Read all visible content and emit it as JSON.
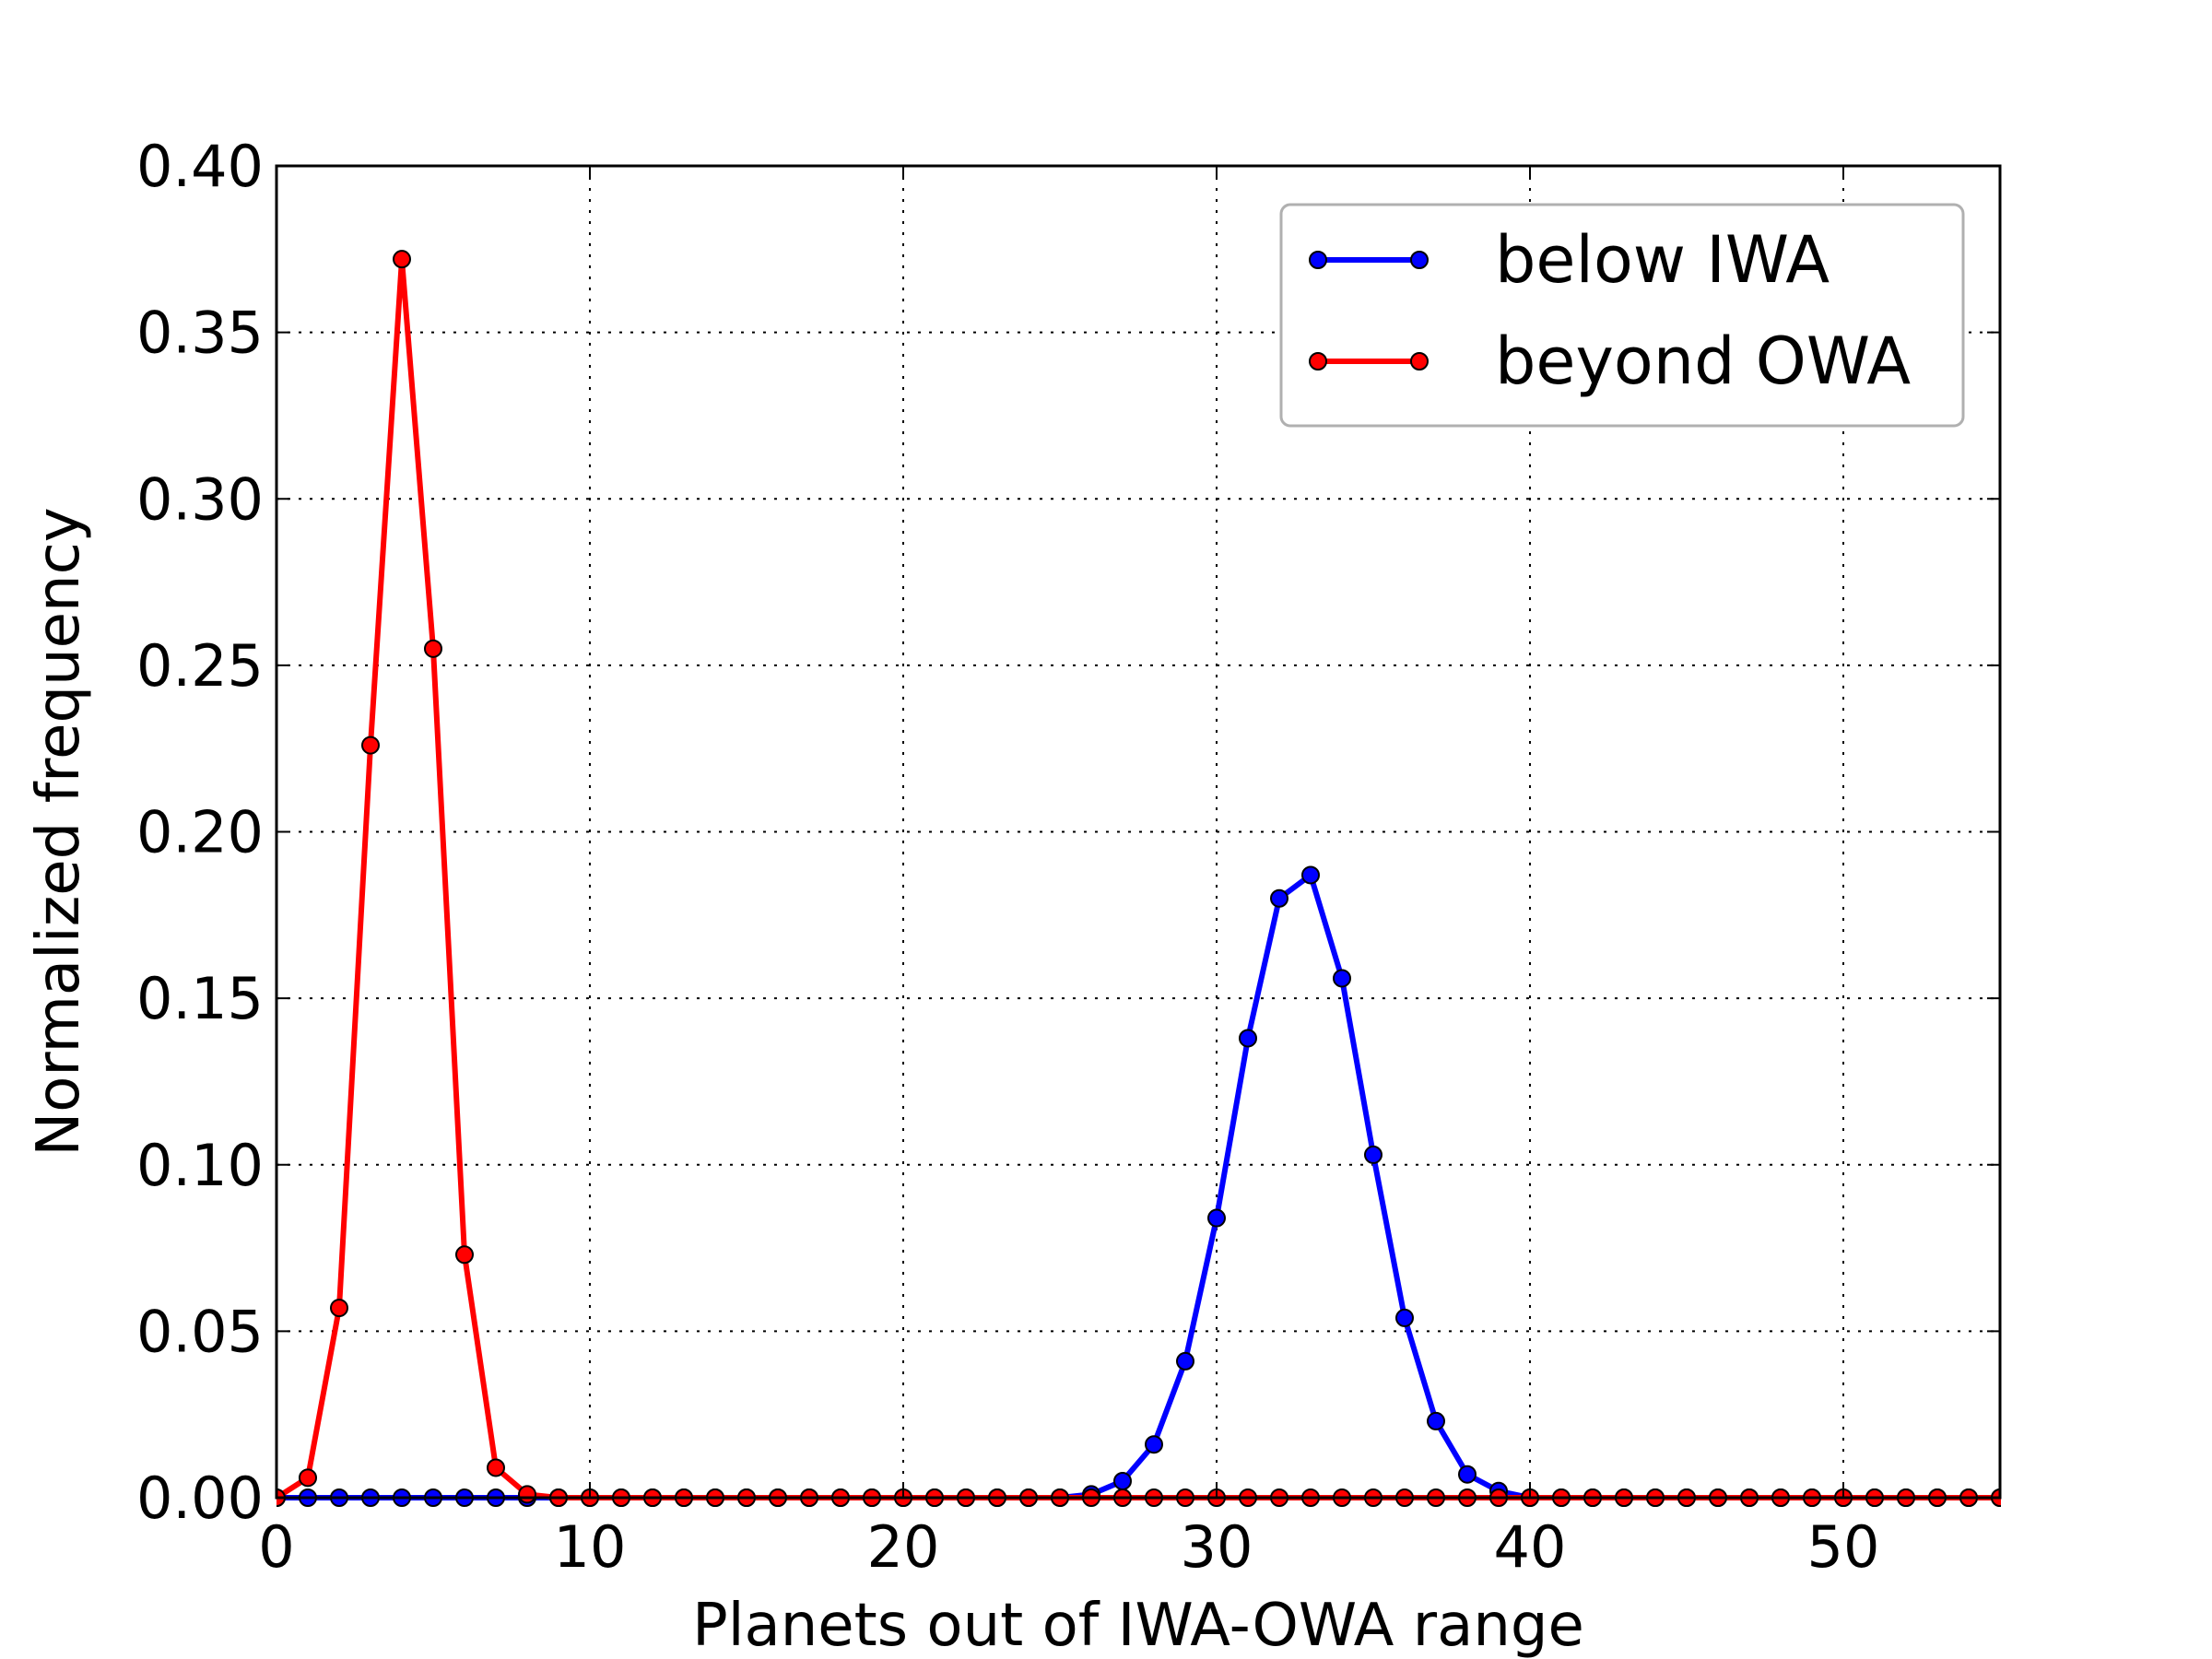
{
  "chart_data": {
    "type": "line",
    "title": "",
    "xlabel": "Planets out of IWA-OWA range",
    "ylabel": "Normalized frequency",
    "xlim": [
      0,
      55
    ],
    "ylim": [
      0,
      0.4
    ],
    "xticks": [
      0,
      10,
      20,
      30,
      40,
      50
    ],
    "xtick_labels": [
      "0",
      "10",
      "20",
      "30",
      "40",
      "50"
    ],
    "yticks": [
      0,
      0.05,
      0.1,
      0.15,
      0.2,
      0.25,
      0.3,
      0.35,
      0.4
    ],
    "ytick_labels": [
      "0.00",
      "0.05",
      "0.10",
      "0.15",
      "0.20",
      "0.25",
      "0.30",
      "0.35",
      "0.40"
    ],
    "grid": true,
    "legend_position": "top-right",
    "series": [
      {
        "name": "below IWA",
        "color": "#0000ff",
        "x": [
          0,
          1,
          2,
          3,
          4,
          5,
          6,
          7,
          8,
          9,
          10,
          11,
          12,
          13,
          14,
          15,
          16,
          17,
          18,
          19,
          20,
          21,
          22,
          23,
          24,
          25,
          26,
          27,
          28,
          29,
          30,
          31,
          32,
          33,
          34,
          35,
          36,
          37,
          38,
          39,
          40,
          41,
          42,
          43,
          44,
          45,
          46,
          47,
          48,
          49,
          50,
          51,
          52,
          53,
          54,
          55
        ],
        "y": [
          0,
          0,
          0,
          0,
          0,
          0,
          0,
          0,
          0,
          0,
          0,
          0,
          0,
          0,
          0,
          0,
          0,
          0,
          0,
          0,
          0,
          0,
          0,
          0,
          0,
          0,
          0.001,
          0.005,
          0.016,
          0.041,
          0.084,
          0.138,
          0.18,
          0.187,
          0.156,
          0.103,
          0.054,
          0.023,
          0.007,
          0.002,
          0,
          0,
          0,
          0,
          0,
          0,
          0,
          0,
          0,
          0,
          0,
          0,
          0,
          0,
          0,
          0
        ]
      },
      {
        "name": "beyond OWA",
        "color": "#ff0000",
        "x": [
          0,
          1,
          2,
          3,
          4,
          5,
          6,
          7,
          8,
          9,
          10,
          11,
          12,
          13,
          14,
          15,
          16,
          17,
          18,
          19,
          20,
          21,
          22,
          23,
          24,
          25,
          26,
          27,
          28,
          29,
          30,
          31,
          32,
          33,
          34,
          35,
          36,
          37,
          38,
          39,
          40,
          41,
          42,
          43,
          44,
          45,
          46,
          47,
          48,
          49,
          50,
          51,
          52,
          53,
          54,
          55
        ],
        "y": [
          0,
          0.006,
          0.057,
          0.226,
          0.372,
          0.255,
          0.073,
          0.009,
          0.001,
          0,
          0,
          0,
          0,
          0,
          0,
          0,
          0,
          0,
          0,
          0,
          0,
          0,
          0,
          0,
          0,
          0,
          0,
          0,
          0,
          0,
          0,
          0,
          0,
          0,
          0,
          0,
          0,
          0,
          0,
          0,
          0,
          0,
          0,
          0,
          0,
          0,
          0,
          0,
          0,
          0,
          0,
          0,
          0,
          0,
          0,
          0
        ]
      }
    ]
  }
}
